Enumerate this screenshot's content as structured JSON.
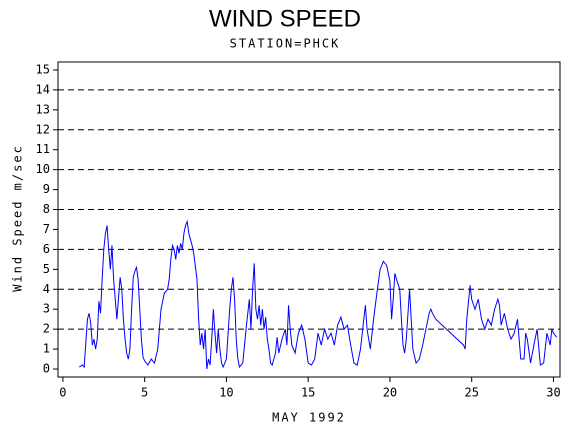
{
  "chart_data": {
    "type": "line",
    "title": "WIND SPEED",
    "subtitle": "STATION=PHCK",
    "x_label": "MAY 1992",
    "y_label": "Wind Speed m/sec",
    "color": "#0000ff",
    "grid": "dashed",
    "xlim": [
      -0.3,
      30.4
    ],
    "xticks": [
      0,
      5,
      10,
      15,
      20,
      25,
      30
    ],
    "ylim": [
      -0.4,
      15.4
    ],
    "yticks": [
      0,
      1,
      2,
      3,
      4,
      5,
      6,
      7,
      8,
      9,
      10,
      11,
      12,
      13,
      14,
      15
    ],
    "x": [
      1.0,
      1.2,
      1.3,
      1.5,
      1.6,
      1.7,
      1.8,
      1.9,
      2.0,
      2.1,
      2.2,
      2.3,
      2.4,
      2.5,
      2.6,
      2.7,
      2.8,
      2.9,
      3.0,
      3.1,
      3.2,
      3.3,
      3.5,
      3.6,
      3.7,
      3.8,
      3.9,
      4.0,
      4.1,
      4.2,
      4.3,
      4.4,
      4.5,
      4.6,
      4.7,
      4.8,
      4.9,
      5.0,
      5.2,
      5.4,
      5.6,
      5.8,
      5.9,
      6.0,
      6.2,
      6.4,
      6.5,
      6.6,
      6.7,
      6.8,
      6.9,
      7.0,
      7.1,
      7.2,
      7.3,
      7.4,
      7.5,
      7.6,
      7.7,
      7.8,
      7.9,
      8.0,
      8.2,
      8.3,
      8.4,
      8.5,
      8.6,
      8.7,
      8.8,
      8.9,
      9.0,
      9.1,
      9.2,
      9.3,
      9.4,
      9.5,
      9.6,
      9.7,
      9.8,
      10.0,
      10.2,
      10.3,
      10.4,
      10.5,
      10.6,
      10.7,
      10.8,
      11.0,
      11.2,
      11.4,
      11.5,
      11.6,
      11.7,
      11.8,
      11.9,
      12.0,
      12.1,
      12.2,
      12.3,
      12.4,
      12.5,
      12.6,
      12.7,
      12.8,
      13.0,
      13.1,
      13.2,
      13.4,
      13.6,
      13.7,
      13.8,
      13.9,
      14.0,
      14.2,
      14.4,
      14.6,
      14.8,
      15.0,
      15.2,
      15.4,
      15.6,
      15.8,
      16.0,
      16.2,
      16.4,
      16.6,
      16.8,
      17.0,
      17.2,
      17.4,
      17.6,
      17.8,
      18.0,
      18.2,
      18.4,
      18.5,
      18.6,
      18.8,
      19.0,
      19.2,
      19.4,
      19.6,
      19.8,
      20.0,
      20.1,
      20.2,
      20.3,
      20.4,
      20.6,
      20.7,
      20.8,
      20.9,
      21.0,
      21.2,
      21.3,
      21.4,
      21.6,
      21.8,
      22.0,
      22.2,
      22.4,
      22.5,
      22.6,
      22.8,
      24.5,
      24.6,
      24.7,
      24.9,
      25.0,
      25.2,
      25.4,
      25.6,
      25.8,
      26.0,
      26.2,
      26.4,
      26.6,
      26.7,
      26.8,
      27.0,
      27.2,
      27.4,
      27.6,
      27.8,
      28.0,
      28.2,
      28.3,
      28.4,
      28.6,
      28.8,
      29.0,
      29.2,
      29.4,
      29.6,
      29.8,
      29.9,
      30.0,
      30.2
    ],
    "values": [
      0.1,
      0.2,
      0.1,
      2.5,
      2.8,
      2.3,
      1.2,
      1.5,
      1.0,
      1.5,
      3.4,
      2.8,
      4.5,
      6.0,
      6.8,
      7.2,
      6.0,
      5.0,
      6.2,
      4.5,
      3.5,
      2.5,
      4.6,
      4.0,
      2.5,
      1.5,
      0.8,
      0.5,
      1.0,
      3.0,
      4.6,
      4.9,
      5.1,
      4.5,
      3.0,
      1.5,
      0.6,
      0.4,
      0.2,
      0.5,
      0.3,
      1.0,
      2.0,
      3.0,
      3.8,
      4.0,
      4.5,
      5.5,
      6.2,
      6.0,
      5.5,
      6.2,
      5.8,
      6.3,
      6.0,
      6.8,
      7.2,
      7.4,
      6.8,
      6.5,
      6.2,
      5.8,
      4.5,
      2.5,
      1.2,
      1.8,
      1.0,
      2.0,
      0.0,
      0.5,
      0.2,
      1.5,
      3.0,
      1.8,
      0.8,
      2.0,
      1.0,
      0.3,
      0.1,
      0.5,
      3.0,
      4.0,
      4.6,
      3.5,
      1.5,
      0.5,
      0.1,
      0.3,
      2.0,
      3.5,
      2.0,
      4.0,
      5.3,
      3.0,
      2.5,
      3.2,
      2.2,
      3.0,
      2.0,
      2.6,
      1.5,
      1.0,
      0.3,
      0.2,
      0.8,
      1.6,
      0.8,
      1.5,
      2.0,
      1.2,
      3.2,
      2.0,
      1.2,
      0.8,
      1.8,
      2.2,
      1.5,
      0.3,
      0.2,
      0.5,
      1.8,
      1.2,
      2.0,
      1.5,
      1.8,
      1.2,
      2.2,
      2.6,
      2.0,
      2.2,
      1.2,
      0.3,
      0.2,
      1.0,
      2.5,
      3.2,
      2.0,
      1.0,
      2.5,
      3.8,
      5.0,
      5.4,
      5.2,
      4.4,
      2.5,
      3.5,
      4.8,
      4.5,
      4.0,
      2.5,
      1.2,
      0.8,
      1.5,
      4.0,
      2.5,
      1.0,
      0.3,
      0.5,
      1.2,
      2.0,
      2.8,
      3.0,
      2.8,
      2.5,
      1.2,
      1.0,
      2.5,
      4.2,
      3.5,
      3.0,
      3.5,
      2.5,
      2.0,
      2.5,
      2.2,
      3.0,
      3.5,
      3.2,
      2.2,
      2.8,
      2.0,
      1.5,
      1.8,
      2.5,
      0.5,
      0.5,
      1.8,
      1.5,
      0.3,
      1.2,
      2.0,
      0.2,
      0.3,
      1.8,
      1.2,
      2.0,
      1.8,
      1.6
    ]
  }
}
